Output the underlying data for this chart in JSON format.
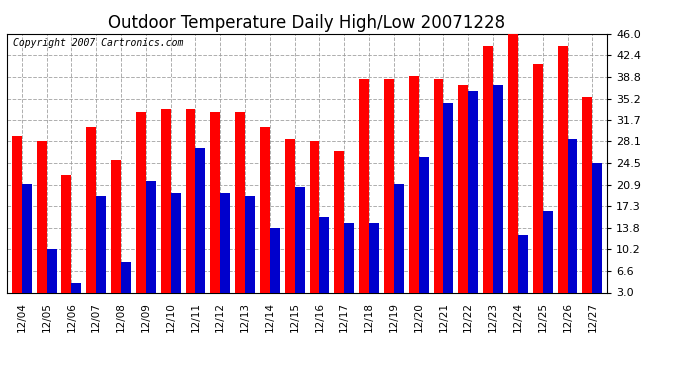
{
  "title": "Outdoor Temperature Daily High/Low 20071228",
  "copyright": "Copyright 2007 Cartronics.com",
  "dates": [
    "12/04",
    "12/05",
    "12/06",
    "12/07",
    "12/08",
    "12/09",
    "12/10",
    "12/11",
    "12/12",
    "12/13",
    "12/14",
    "12/15",
    "12/16",
    "12/17",
    "12/18",
    "12/19",
    "12/20",
    "12/21",
    "12/22",
    "12/23",
    "12/24",
    "12/25",
    "12/26",
    "12/27"
  ],
  "highs": [
    29.0,
    28.1,
    22.5,
    30.5,
    25.0,
    33.0,
    33.5,
    33.5,
    33.0,
    33.0,
    30.5,
    28.5,
    28.1,
    26.5,
    38.5,
    38.5,
    39.0,
    38.5,
    37.5,
    44.0,
    46.0,
    41.0,
    44.0,
    35.5
  ],
  "lows": [
    21.0,
    10.2,
    4.5,
    19.0,
    8.0,
    21.5,
    19.5,
    27.0,
    19.5,
    19.0,
    13.8,
    20.5,
    15.5,
    14.5,
    14.5,
    21.0,
    25.5,
    34.5,
    36.5,
    37.5,
    12.5,
    16.5,
    28.5,
    24.5
  ],
  "high_color": "#ff0000",
  "low_color": "#0000cc",
  "ylim": [
    3.0,
    46.0
  ],
  "yticks": [
    3.0,
    6.6,
    10.2,
    13.8,
    17.3,
    20.9,
    24.5,
    28.1,
    31.7,
    35.2,
    38.8,
    42.4,
    46.0
  ],
  "bg_color": "#ffffff",
  "grid_color": "#999999",
  "title_fontsize": 12,
  "copyright_fontsize": 7,
  "bar_width": 0.4
}
